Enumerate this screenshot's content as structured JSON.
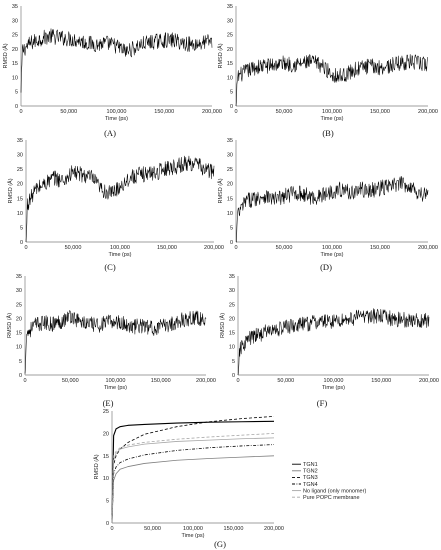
{
  "chart_data": [
    {
      "id": "A",
      "type": "line",
      "panel_label": "(A)",
      "xlabel": "Time (ps)",
      "ylabel": "RMSD (Å)",
      "xlim": [
        0,
        200000
      ],
      "ylim": [
        0,
        35
      ],
      "xticks": [
        "0",
        "50,000",
        "100,000",
        "150,000",
        "200,000"
      ],
      "yticks": [
        "0",
        "5",
        "10",
        "15",
        "20",
        "25",
        "30",
        "35"
      ],
      "series": [
        {
          "color": "#000000",
          "x": [
            0,
            10000,
            20000,
            30000,
            40000,
            50000,
            60000,
            70000,
            80000,
            90000,
            100000,
            110000,
            120000,
            130000,
            140000,
            150000,
            160000,
            170000,
            180000,
            190000,
            200000
          ],
          "values": [
            19,
            22,
            23.5,
            24.5,
            24,
            23.5,
            23,
            22,
            21.5,
            22,
            21,
            19,
            20.5,
            22,
            22.5,
            23,
            23,
            22,
            21.5,
            22,
            23
          ]
        }
      ]
    },
    {
      "id": "B",
      "type": "line",
      "panel_label": "(B)",
      "xlabel": "Time (ps)",
      "ylabel": "RMSD (Å)",
      "xlim": [
        0,
        200000
      ],
      "ylim": [
        0,
        35
      ],
      "xticks": [
        "0",
        "50,000",
        "100,000",
        "150,000",
        "200,000"
      ],
      "yticks": [
        "0",
        "5",
        "10",
        "15",
        "20",
        "25",
        "30",
        "35"
      ],
      "series": [
        {
          "color": "#000000",
          "x": [
            0,
            10000,
            20000,
            30000,
            40000,
            50000,
            60000,
            70000,
            80000,
            90000,
            100000,
            110000,
            120000,
            130000,
            140000,
            150000,
            160000,
            170000,
            180000,
            190000,
            200000
          ],
          "values": [
            10,
            12,
            13.5,
            14,
            14.5,
            15,
            14.5,
            15,
            15.5,
            14,
            11,
            10.5,
            12,
            13.5,
            14,
            13.5,
            14,
            15,
            15.5,
            15,
            14.5
          ]
        }
      ]
    },
    {
      "id": "C",
      "type": "line",
      "panel_label": "(C)",
      "xlabel": "Time (ps)",
      "ylabel": "RMSD (Å)",
      "xlim": [
        0,
        200000
      ],
      "ylim": [
        0,
        35
      ],
      "xticks": [
        "0",
        "50,000",
        "100,000",
        "150,000",
        "200,000"
      ],
      "yticks": [
        "0",
        "5",
        "10",
        "15",
        "20",
        "25",
        "30",
        "35"
      ],
      "series": [
        {
          "color": "#000000",
          "x": [
            0,
            10000,
            20000,
            30000,
            40000,
            50000,
            60000,
            70000,
            80000,
            90000,
            100000,
            110000,
            120000,
            130000,
            140000,
            150000,
            160000,
            170000,
            180000,
            190000,
            200000
          ],
          "values": [
            12,
            18,
            20,
            22,
            21,
            24,
            23,
            22,
            18,
            16.5,
            19,
            22,
            23,
            23.5,
            24,
            25.5,
            26,
            27,
            27,
            25,
            24
          ]
        }
      ]
    },
    {
      "id": "D",
      "type": "line",
      "panel_label": "(D)",
      "xlabel": "Time (ps)",
      "ylabel": "RMSD (Å)",
      "xlim": [
        0,
        200000
      ],
      "ylim": [
        0,
        35
      ],
      "xticks": [
        "0",
        "50,000",
        "100,000",
        "150,000",
        "200,000"
      ],
      "yticks": [
        "0",
        "5",
        "10",
        "15",
        "20",
        "25",
        "30",
        "35"
      ],
      "series": [
        {
          "color": "#000000",
          "x": [
            0,
            10000,
            20000,
            30000,
            40000,
            50000,
            60000,
            70000,
            80000,
            90000,
            100000,
            110000,
            120000,
            130000,
            140000,
            150000,
            160000,
            170000,
            180000,
            190000,
            200000
          ],
          "values": [
            8,
            14,
            15,
            16,
            14.5,
            15.5,
            17,
            16.5,
            15,
            16,
            17.5,
            18,
            17,
            18,
            17.5,
            18.5,
            19,
            20,
            19.5,
            17,
            16
          ]
        }
      ]
    },
    {
      "id": "E",
      "type": "line",
      "panel_label": "(E)",
      "xlabel": "Time (ps)",
      "ylabel": "RMSD (Å)",
      "xlim": [
        0,
        200000
      ],
      "ylim": [
        0,
        35
      ],
      "xticks": [
        "0",
        "50,000",
        "100,000",
        "150,000",
        "200,000"
      ],
      "yticks": [
        "0",
        "5",
        "10",
        "15",
        "20",
        "25",
        "30",
        "35"
      ],
      "series": [
        {
          "color": "#000000",
          "x": [
            0,
            10000,
            20000,
            30000,
            40000,
            50000,
            60000,
            70000,
            80000,
            90000,
            100000,
            110000,
            120000,
            130000,
            140000,
            150000,
            160000,
            170000,
            180000,
            190000,
            200000
          ],
          "values": [
            14,
            17.5,
            18.5,
            18,
            19,
            21,
            19,
            18,
            17.5,
            18.5,
            19,
            18,
            17,
            17.5,
            16.5,
            17,
            18,
            19,
            20,
            20.5,
            18.5
          ]
        }
      ]
    },
    {
      "id": "F",
      "type": "line",
      "panel_label": "(F)",
      "xlabel": "Time (ps)",
      "ylabel": "RMSD (Å)",
      "xlim": [
        0,
        200000
      ],
      "ylim": [
        0,
        35
      ],
      "xticks": [
        "0",
        "50,000",
        "100,000",
        "150,000",
        "200,000"
      ],
      "yticks": [
        "0",
        "5",
        "10",
        "15",
        "20",
        "25",
        "30",
        "35"
      ],
      "series": [
        {
          "color": "#000000",
          "x": [
            0,
            10000,
            20000,
            30000,
            40000,
            50000,
            60000,
            70000,
            80000,
            90000,
            100000,
            110000,
            120000,
            130000,
            140000,
            150000,
            160000,
            170000,
            180000,
            190000,
            200000
          ],
          "values": [
            8,
            12.5,
            14,
            15.5,
            16,
            17,
            17.5,
            18,
            18.5,
            19,
            19,
            19.5,
            20,
            21,
            21,
            20.5,
            20,
            19.5,
            19.5,
            19,
            19.5
          ]
        }
      ]
    },
    {
      "id": "G",
      "type": "line",
      "panel_label": "(G)",
      "xlabel": "Time (ps)",
      "ylabel": "RMSD (Å)",
      "xlim": [
        0,
        200000
      ],
      "ylim": [
        0,
        25
      ],
      "xticks": [
        "0",
        "50,000",
        "100,000",
        "150,000",
        "200,000"
      ],
      "yticks": [
        "0",
        "5",
        "10",
        "15",
        "20",
        "25"
      ],
      "legend_position": "right",
      "series": [
        {
          "name": "TGN1",
          "color": "#000000",
          "dash": "solid",
          "x": [
            0,
            2000,
            5000,
            10000,
            20000,
            40000,
            80000,
            120000,
            160000,
            200000
          ],
          "values": [
            0,
            19.5,
            21,
            21.5,
            21.8,
            22,
            22.3,
            22.5,
            22.6,
            22.7
          ]
        },
        {
          "name": "TGN2",
          "color": "#7f7f7f",
          "dash": "solid",
          "x": [
            0,
            2000,
            5000,
            10000,
            20000,
            40000,
            80000,
            120000,
            160000,
            200000
          ],
          "values": [
            0,
            9.5,
            11,
            12,
            12.6,
            13.3,
            14,
            14.4,
            14.7,
            15
          ]
        },
        {
          "name": "TGN3",
          "color": "#000000",
          "dash": "dash",
          "x": [
            0,
            2000,
            5000,
            10000,
            20000,
            40000,
            80000,
            120000,
            160000,
            200000
          ],
          "values": [
            0,
            13,
            15,
            16.5,
            18,
            19.8,
            21.5,
            22.6,
            23.3,
            23.8
          ]
        },
        {
          "name": "TGN4",
          "color": "#000000",
          "dash": "dashdot",
          "x": [
            0,
            2000,
            5000,
            10000,
            20000,
            40000,
            80000,
            120000,
            160000,
            200000
          ],
          "values": [
            0,
            11,
            12.5,
            13.5,
            14.3,
            15.2,
            16.2,
            16.8,
            17.2,
            17.5
          ]
        },
        {
          "name": "No ligand (only monomer)",
          "color": "#a6a6a6",
          "dash": "solid",
          "x": [
            0,
            2000,
            5000,
            10000,
            20000,
            40000,
            80000,
            120000,
            160000,
            200000
          ],
          "values": [
            0,
            14,
            15.5,
            16.5,
            17,
            17.6,
            18.2,
            18.5,
            18.8,
            19
          ]
        },
        {
          "name": "Pure POPC membrane",
          "color": "#a6a6a6",
          "dash": "dash",
          "x": [
            0,
            2000,
            5000,
            10000,
            20000,
            40000,
            80000,
            120000,
            160000,
            200000
          ],
          "values": [
            0,
            15,
            16,
            16.8,
            17.4,
            18,
            18.7,
            19.2,
            19.6,
            20
          ]
        }
      ]
    }
  ]
}
